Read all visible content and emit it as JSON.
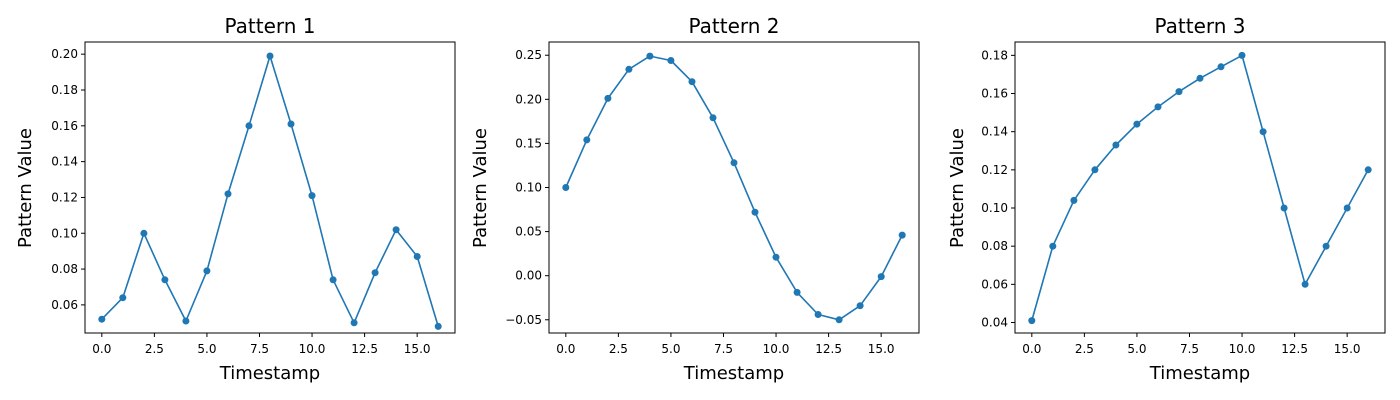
{
  "chart_data": [
    {
      "type": "line",
      "title": "Pattern 1",
      "xlabel": "Timestamp",
      "ylabel": "Pattern Value",
      "x": [
        0,
        1,
        2,
        3,
        4,
        5,
        6,
        7,
        8,
        9,
        10,
        11,
        12,
        13,
        14,
        15,
        16
      ],
      "series": [
        {
          "values": [
            0.052,
            0.064,
            0.1,
            0.074,
            0.051,
            0.079,
            0.122,
            0.16,
            0.199,
            0.161,
            0.121,
            0.074,
            0.05,
            0.078,
            0.102,
            0.087,
            0.048
          ]
        }
      ],
      "xlim": [
        -0.8,
        16.8
      ],
      "ylim": [
        0.0443,
        0.2068
      ],
      "xticks": [
        0.0,
        2.5,
        5.0,
        7.5,
        10.0,
        12.5,
        15.0
      ],
      "xtick_labels": [
        "0.0",
        "2.5",
        "5.0",
        "7.5",
        "10.0",
        "12.5",
        "15.0"
      ],
      "yticks": [
        0.06,
        0.08,
        0.1,
        0.12,
        0.14,
        0.16,
        0.18,
        0.2
      ],
      "ytick_labels": [
        "0.06",
        "0.08",
        "0.10",
        "0.12",
        "0.14",
        "0.16",
        "0.18",
        "0.20"
      ],
      "grid": false,
      "color": "#1f77b4"
    },
    {
      "type": "line",
      "title": "Pattern 2",
      "xlabel": "Timestamp",
      "ylabel": "Pattern Value",
      "x": [
        0,
        1,
        2,
        3,
        4,
        5,
        6,
        7,
        8,
        9,
        10,
        11,
        12,
        13,
        14,
        15,
        16
      ],
      "series": [
        {
          "values": [
            0.1,
            0.154,
            0.201,
            0.234,
            0.249,
            0.244,
            0.22,
            0.179,
            0.128,
            0.072,
            0.021,
            -0.019,
            -0.044,
            -0.05,
            -0.034,
            -0.001,
            0.046
          ]
        }
      ],
      "xlim": [
        -0.8,
        16.8
      ],
      "ylim": [
        -0.065,
        0.265
      ],
      "xticks": [
        0.0,
        2.5,
        5.0,
        7.5,
        10.0,
        12.5,
        15.0
      ],
      "xtick_labels": [
        "0.0",
        "2.5",
        "5.0",
        "7.5",
        "10.0",
        "12.5",
        "15.0"
      ],
      "yticks": [
        -0.05,
        0.0,
        0.05,
        0.1,
        0.15,
        0.2,
        0.25
      ],
      "ytick_labels": [
        "−0.05",
        "0.00",
        "0.05",
        "0.10",
        "0.15",
        "0.20",
        "0.25"
      ],
      "grid": false,
      "color": "#1f77b4"
    },
    {
      "type": "line",
      "title": "Pattern 3",
      "xlabel": "Timestamp",
      "ylabel": "Pattern Value",
      "x": [
        0,
        1,
        2,
        3,
        4,
        5,
        6,
        7,
        8,
        9,
        10,
        11,
        12,
        13,
        14,
        15,
        16
      ],
      "series": [
        {
          "values": [
            0.041,
            0.08,
            0.104,
            0.12,
            0.133,
            0.144,
            0.153,
            0.161,
            0.168,
            0.174,
            0.18,
            0.14,
            0.1,
            0.06,
            0.08,
            0.1,
            0.12
          ]
        }
      ],
      "xlim": [
        -0.8,
        16.8
      ],
      "ylim": [
        0.0345,
        0.187
      ],
      "xticks": [
        0.0,
        2.5,
        5.0,
        7.5,
        10.0,
        12.5,
        15.0
      ],
      "xtick_labels": [
        "0.0",
        "2.5",
        "5.0",
        "7.5",
        "10.0",
        "12.5",
        "15.0"
      ],
      "yticks": [
        0.04,
        0.06,
        0.08,
        0.1,
        0.12,
        0.14,
        0.16,
        0.18
      ],
      "ytick_labels": [
        "0.04",
        "0.06",
        "0.08",
        "0.10",
        "0.12",
        "0.14",
        "0.16",
        "0.18"
      ],
      "grid": false,
      "color": "#1f77b4"
    }
  ]
}
